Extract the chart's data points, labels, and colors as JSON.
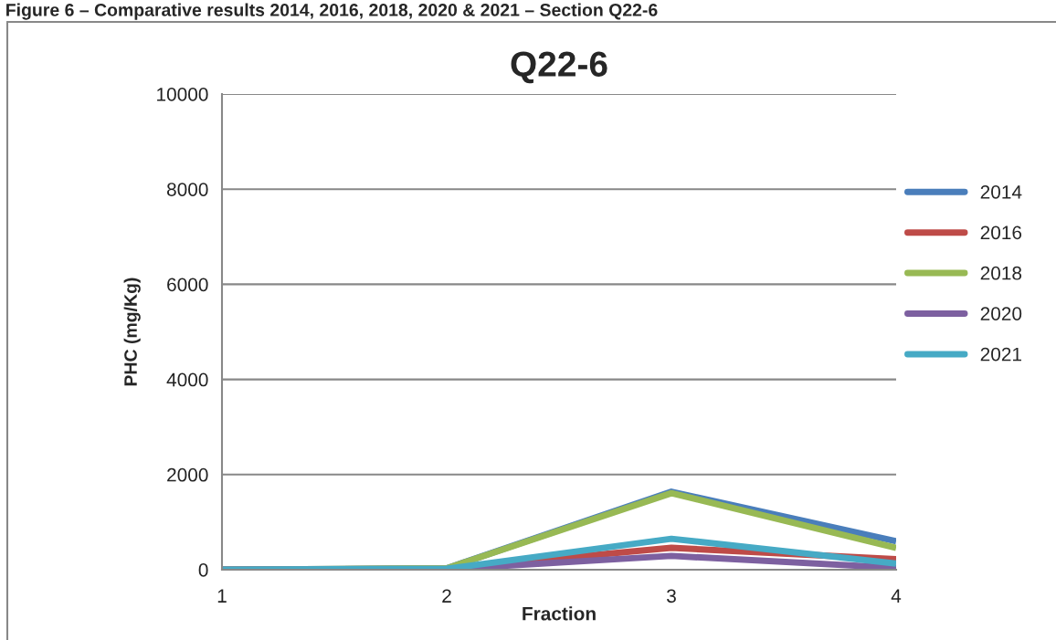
{
  "chart_data": {
    "type": "line",
    "title": "Q22-6",
    "xlabel": "Fraction",
    "ylabel": "PHC (mg/Kg)",
    "annotations": [
      "Figure 6 – Comparative results 2014, 2016, 2018, 2020 & 2021 – Section Q22-6"
    ],
    "x": [
      1,
      2,
      3,
      4
    ],
    "series": [
      {
        "name": "2014",
        "color": "#4a7ebb",
        "values": [
          0,
          30,
          1640,
          600
        ]
      },
      {
        "name": "2016",
        "color": "#be4b48",
        "values": [
          0,
          20,
          460,
          220
        ]
      },
      {
        "name": "2018",
        "color": "#98b954",
        "values": [
          0,
          30,
          1610,
          460
        ]
      },
      {
        "name": "2020",
        "color": "#7d60a0",
        "values": [
          0,
          10,
          290,
          40
        ]
      },
      {
        "name": "2021",
        "color": "#46aac5",
        "values": [
          0,
          20,
          650,
          130
        ]
      }
    ],
    "xlim": [
      1,
      4
    ],
    "xticks": [
      1,
      2,
      3,
      4
    ],
    "ylim": [
      0,
      10000
    ],
    "yticks": [
      0,
      2000,
      4000,
      6000,
      8000,
      10000
    ],
    "grid": "y",
    "legend": "right",
    "marker": "none",
    "line_style": "solid"
  }
}
